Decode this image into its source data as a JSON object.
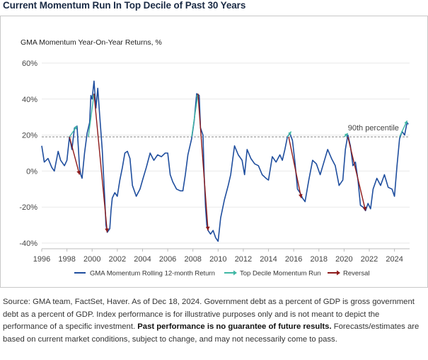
{
  "title": "Current Momentum Run In Top Decile of Past 30 Years",
  "chart_data": {
    "type": "line",
    "title": "GMA Momentum Year-On-Year Returns, %",
    "xlabel": "",
    "ylabel": "",
    "xlim": [
      1996,
      2025.2
    ],
    "ylim": [
      -40,
      60
    ],
    "x_ticks": [
      1996,
      1998,
      2000,
      2002,
      2004,
      2006,
      2008,
      2010,
      2012,
      2014,
      2016,
      2018,
      2020,
      2022,
      2024
    ],
    "y_ticks": [
      -40,
      -20,
      0,
      20,
      40,
      60
    ],
    "y_tick_labels": [
      "-40%",
      "-20%",
      "0%",
      "20%",
      "40%",
      "60%"
    ],
    "threshold": {
      "value": 19,
      "label": "90th percentile"
    },
    "series": [
      {
        "name": "GMA Momentum Rolling 12-month Return",
        "color": "#1f4e9e",
        "points": [
          [
            1996.0,
            14
          ],
          [
            1996.2,
            5
          ],
          [
            1996.5,
            7
          ],
          [
            1996.8,
            2
          ],
          [
            1997.0,
            0
          ],
          [
            1997.3,
            11
          ],
          [
            1997.5,
            6
          ],
          [
            1997.8,
            3
          ],
          [
            1998.0,
            6
          ],
          [
            1998.2,
            19
          ],
          [
            1998.4,
            12
          ],
          [
            1998.6,
            24
          ],
          [
            1998.8,
            25
          ],
          [
            1998.9,
            14
          ],
          [
            1999.0,
            2
          ],
          [
            1999.1,
            -2
          ],
          [
            1999.2,
            -4
          ],
          [
            1999.4,
            10
          ],
          [
            1999.6,
            21
          ],
          [
            1999.8,
            27
          ],
          [
            1999.9,
            42
          ],
          [
            2000.0,
            40
          ],
          [
            2000.15,
            50
          ],
          [
            2000.3,
            35
          ],
          [
            2000.45,
            46
          ],
          [
            2000.6,
            31
          ],
          [
            2000.8,
            12
          ],
          [
            2001.0,
            -15
          ],
          [
            2001.1,
            -30
          ],
          [
            2001.2,
            -34
          ],
          [
            2001.4,
            -32
          ],
          [
            2001.5,
            -22
          ],
          [
            2001.6,
            -15
          ],
          [
            2001.8,
            -12
          ],
          [
            2002.0,
            -14
          ],
          [
            2002.2,
            -5
          ],
          [
            2002.4,
            2
          ],
          [
            2002.6,
            10
          ],
          [
            2002.8,
            11
          ],
          [
            2003.0,
            7
          ],
          [
            2003.2,
            -8
          ],
          [
            2003.5,
            -14
          ],
          [
            2003.8,
            -10
          ],
          [
            2004.0,
            -5
          ],
          [
            2004.3,
            2
          ],
          [
            2004.6,
            10
          ],
          [
            2004.9,
            6
          ],
          [
            2005.2,
            9
          ],
          [
            2005.5,
            8
          ],
          [
            2005.8,
            10
          ],
          [
            2006.0,
            10
          ],
          [
            2006.2,
            -2
          ],
          [
            2006.4,
            -6
          ],
          [
            2006.7,
            -10
          ],
          [
            2007.0,
            -11
          ],
          [
            2007.2,
            -11
          ],
          [
            2007.4,
            -2
          ],
          [
            2007.6,
            9
          ],
          [
            2007.9,
            18
          ],
          [
            2008.1,
            28
          ],
          [
            2008.3,
            43
          ],
          [
            2008.5,
            42
          ],
          [
            2008.6,
            24
          ],
          [
            2008.8,
            20
          ],
          [
            2008.9,
            -3
          ],
          [
            2009.0,
            -20
          ],
          [
            2009.1,
            -30
          ],
          [
            2009.2,
            -33
          ],
          [
            2009.4,
            -35
          ],
          [
            2009.6,
            -33
          ],
          [
            2009.8,
            -37
          ],
          [
            2010.0,
            -39
          ],
          [
            2010.2,
            -26
          ],
          [
            2010.5,
            -16
          ],
          [
            2010.8,
            -8
          ],
          [
            2011.0,
            -2
          ],
          [
            2011.3,
            14
          ],
          [
            2011.6,
            9
          ],
          [
            2011.9,
            6
          ],
          [
            2012.1,
            -2
          ],
          [
            2012.3,
            12
          ],
          [
            2012.6,
            7
          ],
          [
            2012.9,
            4
          ],
          [
            2013.2,
            3
          ],
          [
            2013.5,
            -2
          ],
          [
            2013.8,
            -4
          ],
          [
            2014.0,
            -5
          ],
          [
            2014.3,
            8
          ],
          [
            2014.6,
            5
          ],
          [
            2014.9,
            9
          ],
          [
            2015.1,
            6
          ],
          [
            2015.3,
            12
          ],
          [
            2015.5,
            19
          ],
          [
            2015.7,
            21
          ],
          [
            2015.9,
            17
          ],
          [
            2016.1,
            5
          ],
          [
            2016.3,
            -10
          ],
          [
            2016.5,
            -12
          ],
          [
            2016.7,
            -15
          ],
          [
            2016.9,
            -17
          ],
          [
            2017.2,
            -5
          ],
          [
            2017.5,
            6
          ],
          [
            2017.8,
            4
          ],
          [
            2018.1,
            -2
          ],
          [
            2018.4,
            5
          ],
          [
            2018.7,
            12
          ],
          [
            2019.0,
            7
          ],
          [
            2019.3,
            3
          ],
          [
            2019.6,
            -8
          ],
          [
            2019.9,
            -5
          ],
          [
            2020.1,
            12
          ],
          [
            2020.3,
            20
          ],
          [
            2020.5,
            14
          ],
          [
            2020.7,
            3
          ],
          [
            2020.9,
            5
          ],
          [
            2021.1,
            -5
          ],
          [
            2021.3,
            -19
          ],
          [
            2021.5,
            -20
          ],
          [
            2021.7,
            -22
          ],
          [
            2021.9,
            -18
          ],
          [
            2022.1,
            -21
          ],
          [
            2022.3,
            -10
          ],
          [
            2022.6,
            -4
          ],
          [
            2022.9,
            -8
          ],
          [
            2023.2,
            -2
          ],
          [
            2023.5,
            -9
          ],
          [
            2023.8,
            -10
          ],
          [
            2024.0,
            -14
          ],
          [
            2024.2,
            3
          ],
          [
            2024.4,
            18
          ],
          [
            2024.6,
            22
          ],
          [
            2024.8,
            20
          ],
          [
            2025.0,
            27
          ],
          [
            2025.1,
            26
          ]
        ]
      },
      {
        "name": "Top Decile Momentum Run",
        "color": "#3fb7a4",
        "segments": [
          [
            [
              1998.2,
              19
            ],
            [
              1998.8,
              25
            ]
          ],
          [
            [
              1999.7,
              19
            ],
            [
              2000.15,
              43
            ]
          ],
          [
            [
              2007.9,
              19
            ],
            [
              2008.4,
              43
            ]
          ],
          [
            [
              2015.5,
              19
            ],
            [
              2015.8,
              22
            ]
          ],
          [
            [
              2020.0,
              19
            ],
            [
              2020.3,
              21
            ]
          ],
          [
            [
              2024.4,
              19
            ],
            [
              2025.0,
              28
            ]
          ]
        ]
      },
      {
        "name": "Reversal",
        "color": "#8e1b1b",
        "segments": [
          [
            [
              1998.2,
              19
            ],
            [
              1999.0,
              -2
            ]
          ],
          [
            [
              2000.15,
              43
            ],
            [
              2001.2,
              -34
            ]
          ],
          [
            [
              2008.4,
              43
            ],
            [
              2009.2,
              -33
            ]
          ],
          [
            [
              2015.6,
              19
            ],
            [
              2016.6,
              -15
            ]
          ],
          [
            [
              2020.3,
              19
            ],
            [
              2021.7,
              -22
            ]
          ]
        ]
      }
    ],
    "legend": [
      "GMA Momentum Rolling 12-month Return",
      "Top Decile Momentum Run",
      "Reversal"
    ]
  },
  "source": {
    "text": "Source: GMA team, FactSet, Haver. As of Dec 18, 2024. Government debt as a percent of GDP is gross government debt as a percent of GDP. Index performance is for illustrative purposes only and is not meant to depict the performance of a specific investment. ",
    "bold": "Past performance is no guarantee of future results.",
    "tail": " Forecasts/estimates are based on current market conditions, subject to change, and may not necessarily come to pass."
  }
}
